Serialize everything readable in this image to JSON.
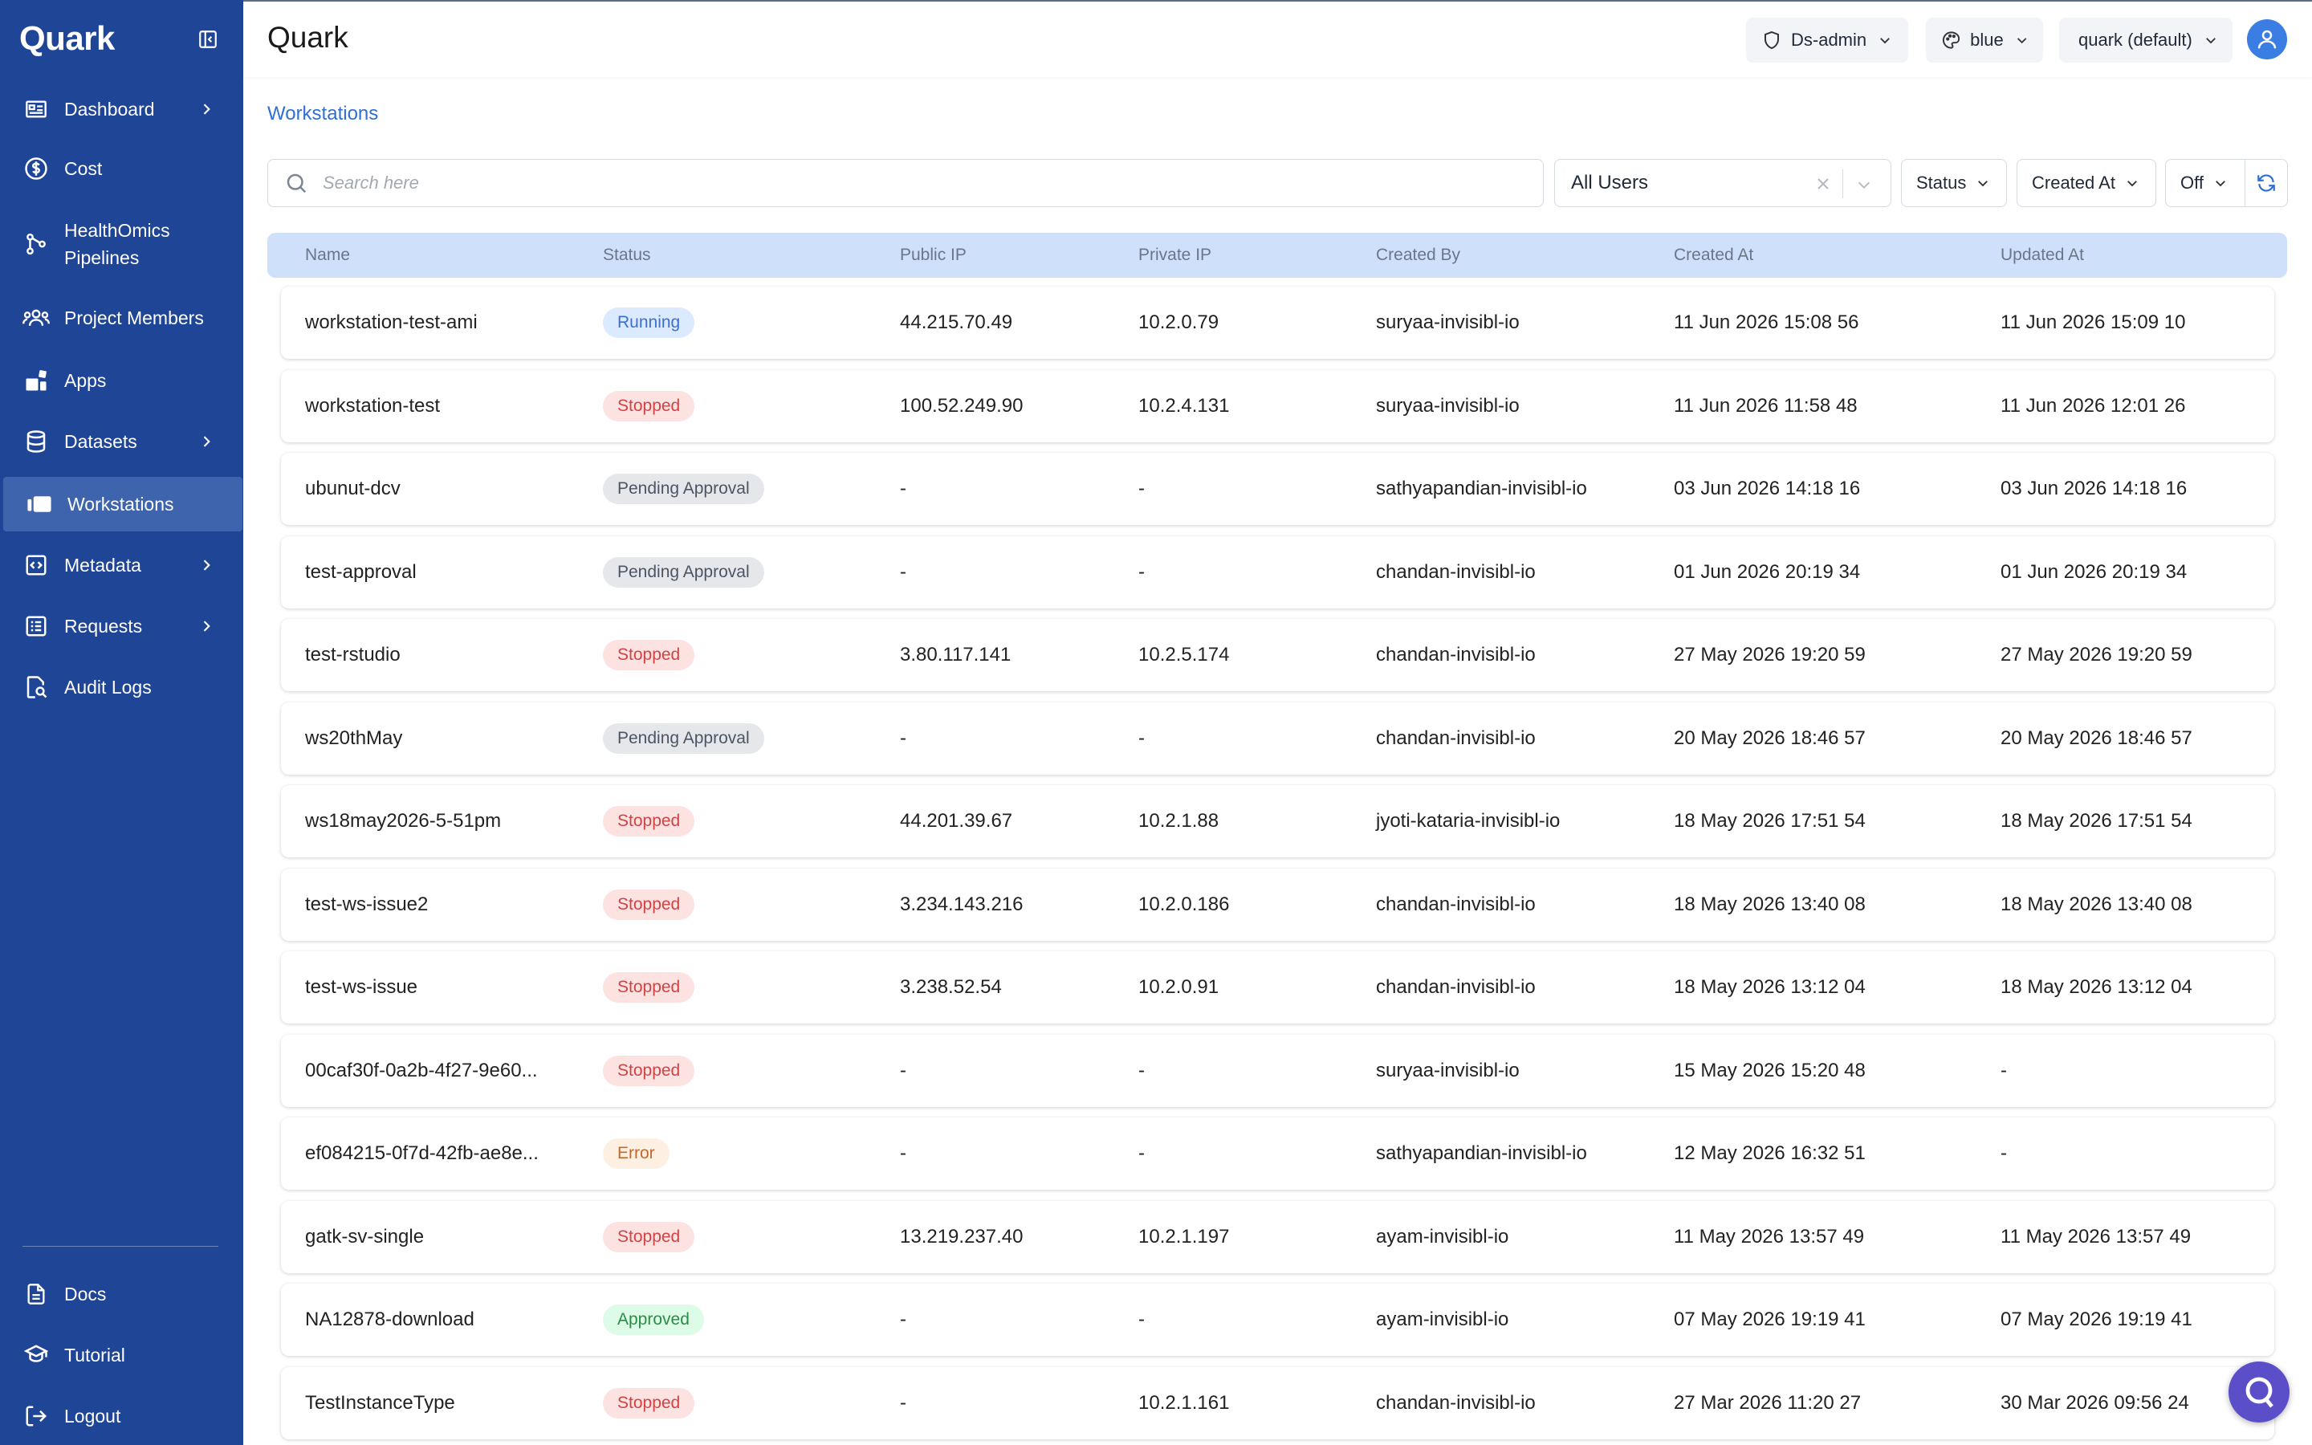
{
  "sidebar": {
    "logo": "Quark",
    "items": [
      {
        "label": "Dashboard",
        "icon": "dashboard-icon",
        "has_chevron": true
      },
      {
        "label": "Cost",
        "icon": "dollar-icon",
        "has_chevron": false
      },
      {
        "label": "HealthOmics",
        "label2": "Pipelines",
        "icon": "pipeline-icon",
        "has_chevron": false
      },
      {
        "label": "Project Members",
        "icon": "members-icon",
        "has_chevron": false
      },
      {
        "label": "Apps",
        "icon": "apps-icon",
        "has_chevron": false
      },
      {
        "label": "Datasets",
        "icon": "database-icon",
        "has_chevron": true
      },
      {
        "label": "Workstations",
        "icon": "workstation-icon",
        "has_chevron": false,
        "active": true
      },
      {
        "label": "Metadata",
        "icon": "code-icon",
        "has_chevron": true
      },
      {
        "label": "Requests",
        "icon": "requests-icon",
        "has_chevron": true
      },
      {
        "label": "Audit Logs",
        "icon": "audit-icon",
        "has_chevron": false
      }
    ],
    "bottom": [
      {
        "label": "Docs",
        "icon": "docs-icon"
      },
      {
        "label": "Tutorial",
        "icon": "graduation-cap-icon"
      },
      {
        "label": "Logout",
        "icon": "logout-icon"
      }
    ]
  },
  "header": {
    "title": "Quark",
    "role": "Ds-admin",
    "theme": "blue",
    "project": "quark (default)"
  },
  "breadcrumb": "Workstations",
  "filters": {
    "search_placeholder": "Search here",
    "users": "All Users",
    "status": "Status",
    "created_at": "Created At",
    "auto_refresh": "Off"
  },
  "table": {
    "columns": [
      "Name",
      "Status",
      "Public IP",
      "Private IP",
      "Created By",
      "Created At",
      "Updated At"
    ],
    "rows": [
      {
        "name": "workstation-test-ami",
        "status": "Running",
        "kind": "running",
        "public_ip": "44.215.70.49",
        "private_ip": "10.2.0.79",
        "created_by": "suryaa-invisibl-io",
        "created_at": "11 Jun 2026 15:08 56",
        "updated_at": "11 Jun 2026 15:09 10"
      },
      {
        "name": "workstation-test",
        "status": "Stopped",
        "kind": "stopped",
        "public_ip": "100.52.249.90",
        "private_ip": "10.2.4.131",
        "created_by": "suryaa-invisibl-io",
        "created_at": "11 Jun 2026 11:58 48",
        "updated_at": "11 Jun 2026 12:01 26"
      },
      {
        "name": "ubunut-dcv",
        "status": "Pending Approval",
        "kind": "pending",
        "public_ip": "-",
        "private_ip": "-",
        "created_by": "sathyapandian-invisibl-io",
        "created_at": "03 Jun 2026 14:18 16",
        "updated_at": "03 Jun 2026 14:18 16"
      },
      {
        "name": "test-approval",
        "status": "Pending Approval",
        "kind": "pending",
        "public_ip": "-",
        "private_ip": "-",
        "created_by": "chandan-invisibl-io",
        "created_at": "01 Jun 2026 20:19 34",
        "updated_at": "01 Jun 2026 20:19 34"
      },
      {
        "name": "test-rstudio",
        "status": "Stopped",
        "kind": "stopped",
        "public_ip": "3.80.117.141",
        "private_ip": "10.2.5.174",
        "created_by": "chandan-invisibl-io",
        "created_at": "27 May 2026 19:20 59",
        "updated_at": "27 May 2026 19:20 59"
      },
      {
        "name": "ws20thMay",
        "status": "Pending Approval",
        "kind": "pending",
        "public_ip": "-",
        "private_ip": "-",
        "created_by": "chandan-invisibl-io",
        "created_at": "20 May 2026 18:46 57",
        "updated_at": "20 May 2026 18:46 57"
      },
      {
        "name": "ws18may2026-5-51pm",
        "status": "Stopped",
        "kind": "stopped",
        "public_ip": "44.201.39.67",
        "private_ip": "10.2.1.88",
        "created_by": "jyoti-kataria-invisibl-io",
        "created_at": "18 May 2026 17:51 54",
        "updated_at": "18 May 2026 17:51 54"
      },
      {
        "name": "test-ws-issue2",
        "status": "Stopped",
        "kind": "stopped",
        "public_ip": "3.234.143.216",
        "private_ip": "10.2.0.186",
        "created_by": "chandan-invisibl-io",
        "created_at": "18 May 2026 13:40 08",
        "updated_at": "18 May 2026 13:40 08"
      },
      {
        "name": "test-ws-issue",
        "status": "Stopped",
        "kind": "stopped",
        "public_ip": "3.238.52.54",
        "private_ip": "10.2.0.91",
        "created_by": "chandan-invisibl-io",
        "created_at": "18 May 2026 13:12 04",
        "updated_at": "18 May 2026 13:12 04"
      },
      {
        "name": "00caf30f-0a2b-4f27-9e60...",
        "status": "Stopped",
        "kind": "stopped",
        "public_ip": "-",
        "private_ip": "-",
        "created_by": "suryaa-invisibl-io",
        "created_at": "15 May 2026 15:20 48",
        "updated_at": "-"
      },
      {
        "name": "ef084215-0f7d-42fb-ae8e...",
        "status": "Error",
        "kind": "error",
        "public_ip": "-",
        "private_ip": "-",
        "created_by": "sathyapandian-invisibl-io",
        "created_at": "12 May 2026 16:32 51",
        "updated_at": "-"
      },
      {
        "name": "gatk-sv-single",
        "status": "Stopped",
        "kind": "stopped",
        "public_ip": "13.219.237.40",
        "private_ip": "10.2.1.197",
        "created_by": "ayam-invisibl-io",
        "created_at": "11 May 2026 13:57 49",
        "updated_at": "11 May 2026 13:57 49"
      },
      {
        "name": "NA12878-download",
        "status": "Approved",
        "kind": "approved",
        "public_ip": "-",
        "private_ip": "-",
        "created_by": "ayam-invisibl-io",
        "created_at": "07 May 2026 19:19 41",
        "updated_at": "07 May 2026 19:19 41"
      },
      {
        "name": "TestInstanceType",
        "status": "Stopped",
        "kind": "stopped",
        "public_ip": "-",
        "private_ip": "10.2.1.161",
        "created_by": "chandan-invisibl-io",
        "created_at": "27 Mar 2026 11:20 27",
        "updated_at": "30 Mar 2026 09:56 24"
      }
    ]
  },
  "colors": {
    "sidebar": "#1f4596",
    "sidebar_active": "#3d64ad",
    "accent": "#2f6fd6",
    "table_header": "#cfe0fb"
  }
}
